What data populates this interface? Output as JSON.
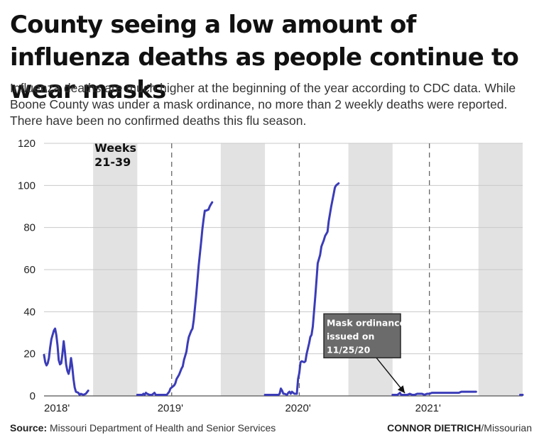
{
  "header": {
    "title": "County seeing a low amount of influenza deaths as people continue to wear masks",
    "subtitle": "Influenza deaths are much higher at the beginning of the year according to CDC data. While Boone County was under a mask ordinance, no more than 2 weekly deaths were reported. There have been no confirmed deaths this flu season."
  },
  "footer": {
    "source_label": "Source:",
    "source_text": "Missouri Department of Health and Senior Services",
    "credit_name": "CONNOR DIETRICH",
    "credit_org": "/Missourian"
  },
  "chart_data": {
    "type": "line",
    "title": "",
    "xlabel": "",
    "ylabel": "",
    "ylim": [
      0,
      120
    ],
    "yticks": [
      0,
      20,
      40,
      60,
      80,
      100,
      120
    ],
    "y_tick_labels": [
      "0",
      "20",
      "40",
      "60",
      "80",
      "100",
      "120"
    ],
    "grid": true,
    "line_color": "#3b3cb8",
    "shade_color": "#e2e2e2",
    "x_tick_labels": [
      {
        "label": "2018'",
        "x": 0
      },
      {
        "label": "2019'",
        "x": 52
      },
      {
        "label": "2020'",
        "x": 104
      },
      {
        "label": "2021'",
        "x": 157
      }
    ],
    "year_boundaries": [
      52,
      104,
      157
    ],
    "shaded_week_ranges": [
      [
        20,
        38
      ],
      [
        72,
        90
      ],
      [
        124,
        142
      ],
      [
        177,
        195
      ]
    ],
    "shaded_label": {
      "lines": [
        "Weeks",
        "21-39"
      ],
      "x": 20,
      "y": 116
    },
    "annotation": {
      "lines": [
        "Mask ordinance",
        "issued on",
        "11/25/20"
      ],
      "target": {
        "x": 147,
        "y": 0
      },
      "box_x": 114,
      "box_y": 39
    },
    "x_domain": [
      0,
      195
    ],
    "series": [
      {
        "name": "",
        "points": [
          [
            0,
            19.5
          ],
          [
            0.5,
            16
          ],
          [
            1,
            14.5
          ],
          [
            1.5,
            15.5
          ],
          [
            2,
            18
          ],
          [
            2.5,
            23
          ],
          [
            3,
            27
          ],
          [
            4,
            31
          ],
          [
            4.5,
            32
          ],
          [
            5,
            29
          ],
          [
            5.5,
            24
          ],
          [
            6,
            17
          ],
          [
            6.5,
            15
          ],
          [
            7,
            15.5
          ],
          [
            7.5,
            20
          ],
          [
            8,
            26
          ],
          [
            8.5,
            21
          ],
          [
            9,
            15
          ],
          [
            9.5,
            12
          ],
          [
            10,
            10.5
          ],
          [
            10.5,
            13
          ],
          [
            11,
            18
          ],
          [
            11.5,
            14
          ],
          [
            12,
            8
          ],
          [
            12.5,
            4
          ],
          [
            13,
            2
          ],
          [
            14,
            1.5
          ],
          [
            14.5,
            0.5
          ],
          [
            15,
            1
          ],
          [
            16,
            0.5
          ],
          [
            17,
            1
          ],
          [
            18,
            2.5
          ]
        ]
      },
      {
        "name": "",
        "points": [
          [
            38,
            0.5
          ],
          [
            39,
            0.5
          ],
          [
            40,
            0.5
          ],
          [
            40.5,
            1
          ],
          [
            41,
            0.5
          ],
          [
            41.5,
            1.5
          ],
          [
            42,
            1
          ],
          [
            43,
            0.5
          ],
          [
            44,
            0.5
          ],
          [
            44.5,
            1
          ],
          [
            45,
            1.5
          ],
          [
            45.5,
            0.5
          ],
          [
            46,
            0.5
          ],
          [
            47,
            0.5
          ],
          [
            48,
            0.5
          ],
          [
            49,
            0.5
          ],
          [
            50,
            0.5
          ],
          [
            51,
            2
          ],
          [
            51.5,
            3.5
          ],
          [
            52,
            4
          ],
          [
            53,
            5
          ],
          [
            53.5,
            6
          ],
          [
            54,
            8
          ],
          [
            55,
            10
          ],
          [
            56,
            13
          ],
          [
            56.5,
            14
          ],
          [
            57,
            17
          ],
          [
            58,
            21
          ],
          [
            58.5,
            25
          ],
          [
            59,
            28
          ],
          [
            60,
            31
          ],
          [
            60.5,
            32
          ],
          [
            61,
            36
          ],
          [
            62,
            48
          ],
          [
            63,
            62
          ],
          [
            64,
            73
          ],
          [
            64.5,
            79
          ],
          [
            65,
            84
          ],
          [
            65.5,
            88
          ],
          [
            66,
            88
          ],
          [
            67,
            88.5
          ],
          [
            67.5,
            90
          ],
          [
            68,
            91
          ],
          [
            68.5,
            92
          ]
        ]
      },
      {
        "name": "",
        "points": [
          [
            90,
            0.5
          ],
          [
            91,
            0.5
          ],
          [
            92,
            0.5
          ],
          [
            93,
            0.5
          ],
          [
            94,
            0.5
          ],
          [
            95,
            0.5
          ],
          [
            95.5,
            0.5
          ],
          [
            96,
            1
          ],
          [
            96.5,
            3.5
          ],
          [
            97,
            2.5
          ],
          [
            97.5,
            1
          ],
          [
            98,
            1
          ],
          [
            99,
            0.5
          ],
          [
            99.5,
            1.5
          ],
          [
            100,
            2
          ],
          [
            100.5,
            1
          ],
          [
            101,
            2
          ],
          [
            101.5,
            1.5
          ],
          [
            102,
            1
          ],
          [
            103,
            1
          ],
          [
            103.5,
            8
          ],
          [
            104,
            11
          ],
          [
            104.5,
            16
          ],
          [
            105,
            16.5
          ],
          [
            106,
            16
          ],
          [
            106.5,
            16.5
          ],
          [
            107,
            20
          ],
          [
            108,
            25
          ],
          [
            108.5,
            28
          ],
          [
            109,
            29
          ],
          [
            109.5,
            33
          ],
          [
            110,
            40
          ],
          [
            110.5,
            47
          ],
          [
            111,
            55
          ],
          [
            111.5,
            63
          ],
          [
            112,
            65
          ],
          [
            112.5,
            67
          ],
          [
            113,
            71
          ],
          [
            114,
            74
          ],
          [
            114.5,
            76
          ],
          [
            115,
            77
          ],
          [
            115.5,
            78
          ],
          [
            116,
            83
          ],
          [
            117,
            90
          ],
          [
            118,
            96
          ],
          [
            118.5,
            99
          ],
          [
            119,
            100
          ],
          [
            120,
            101
          ]
        ]
      },
      {
        "name": "",
        "points": [
          [
            142,
            0.5
          ],
          [
            143,
            0.5
          ],
          [
            144,
            0.5
          ],
          [
            145,
            1.5
          ],
          [
            145.5,
            0.5
          ],
          [
            146,
            0.5
          ],
          [
            147,
            0.5
          ],
          [
            148,
            0.5
          ],
          [
            149,
            1
          ],
          [
            150,
            0.5
          ],
          [
            151,
            0.5
          ],
          [
            152,
            1
          ],
          [
            153,
            1
          ],
          [
            154,
            1
          ],
          [
            155,
            0.5
          ],
          [
            156,
            1
          ],
          [
            157,
            1
          ],
          [
            158,
            1.5
          ],
          [
            159,
            1.5
          ],
          [
            160,
            1.5
          ],
          [
            161,
            1.5
          ],
          [
            162,
            1.5
          ],
          [
            163,
            1.5
          ],
          [
            164,
            1.5
          ],
          [
            165,
            1.5
          ],
          [
            166,
            1.5
          ],
          [
            167,
            1.5
          ],
          [
            168,
            1.5
          ],
          [
            169,
            1.5
          ],
          [
            170,
            2
          ],
          [
            171,
            2
          ],
          [
            172,
            2
          ],
          [
            173,
            2
          ],
          [
            174,
            2
          ],
          [
            175,
            2
          ],
          [
            176,
            2
          ]
        ]
      },
      {
        "name": "",
        "points": [
          [
            194,
            0.5
          ],
          [
            195,
            0.5
          ]
        ]
      }
    ]
  }
}
